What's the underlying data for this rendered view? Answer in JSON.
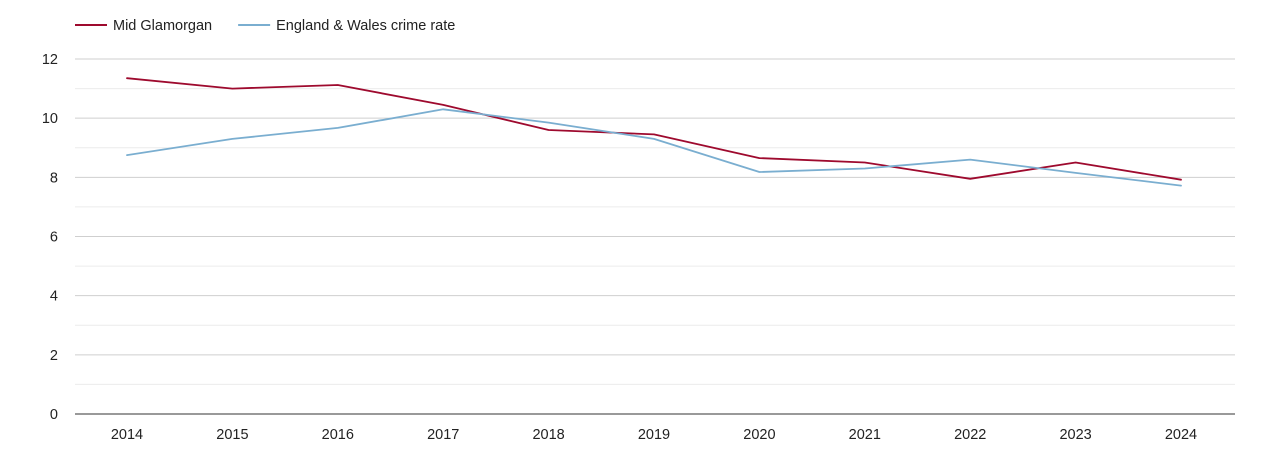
{
  "chart_data": {
    "type": "line",
    "title": "",
    "xlabel": "",
    "ylabel": "",
    "categories": [
      "2014",
      "2015",
      "2016",
      "2017",
      "2018",
      "2019",
      "2020",
      "2021",
      "2022",
      "2023",
      "2024"
    ],
    "series": [
      {
        "name": "Mid Glamorgan",
        "color": "#9e0a2e",
        "values": [
          11.35,
          11.0,
          11.12,
          10.45,
          9.6,
          9.45,
          8.65,
          8.5,
          7.95,
          8.5,
          7.92
        ]
      },
      {
        "name": "England & Wales crime rate",
        "color": "#7aaed0",
        "values": [
          8.75,
          9.3,
          9.67,
          10.3,
          9.85,
          9.3,
          8.18,
          8.3,
          8.6,
          8.15,
          7.72
        ]
      }
    ],
    "ylim": [
      0,
      12
    ],
    "yticks": [
      0,
      2,
      4,
      6,
      8,
      10,
      12
    ],
    "grid": true,
    "legend": "top-left"
  }
}
